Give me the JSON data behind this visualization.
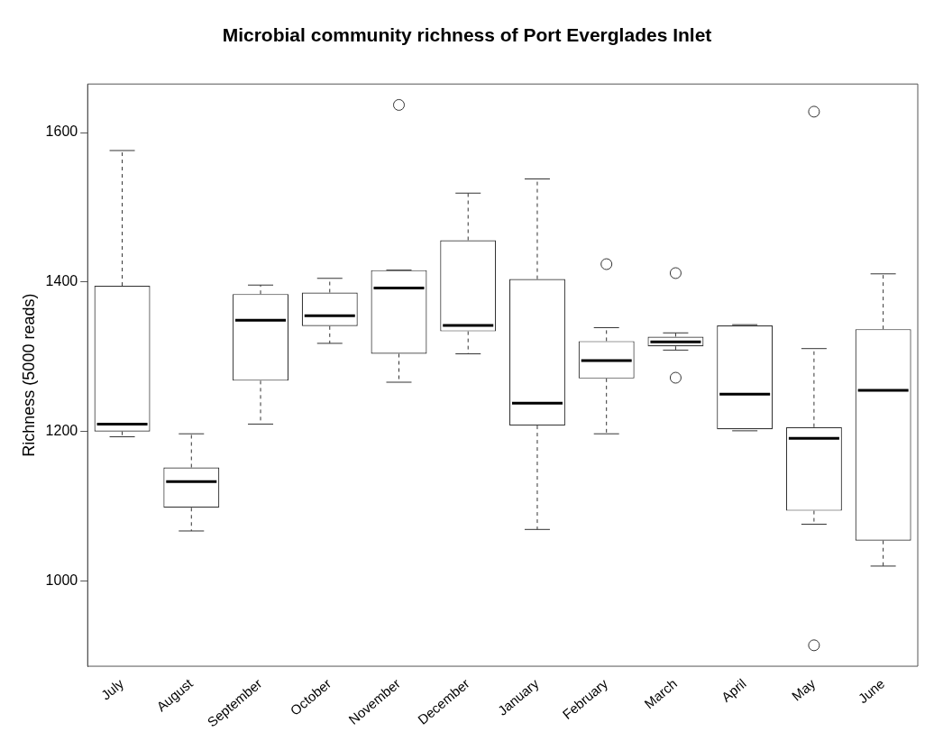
{
  "chart_data": {
    "type": "box",
    "title": "Microbial community richness of Port Everglades Inlet",
    "ylabel": "Richness (5000 reads)",
    "categories": [
      "July",
      "August",
      "September",
      "October",
      "November",
      "December",
      "January",
      "February",
      "March",
      "April",
      "May",
      "June"
    ],
    "boxes": [
      {
        "low": 1193,
        "q1": 1200,
        "median": 1210,
        "q3": 1395,
        "high": 1576
      },
      {
        "low": 1067,
        "q1": 1098,
        "median": 1133,
        "q3": 1152,
        "high": 1197
      },
      {
        "low": 1210,
        "q1": 1268,
        "median": 1349,
        "q3": 1384,
        "high": 1396
      },
      {
        "low": 1318,
        "q1": 1341,
        "median": 1355,
        "q3": 1386,
        "high": 1405
      },
      {
        "low": 1266,
        "q1": 1304,
        "median": 1392,
        "q3": 1416,
        "high": 1416,
        "outliers": [
          1637
        ]
      },
      {
        "low": 1304,
        "q1": 1334,
        "median": 1342,
        "q3": 1456,
        "high": 1519
      },
      {
        "low": 1069,
        "q1": 1208,
        "median": 1238,
        "q3": 1404,
        "high": 1538
      },
      {
        "low": 1197,
        "q1": 1271,
        "median": 1295,
        "q3": 1321,
        "high": 1339,
        "outliers": [
          1424
        ]
      },
      {
        "low": 1309,
        "q1": 1314,
        "median": 1320,
        "q3": 1327,
        "high": 1332,
        "outliers": [
          1412,
          1272
        ]
      },
      {
        "low": 1201,
        "q1": 1203,
        "median": 1250,
        "q3": 1342,
        "high": 1343
      },
      {
        "low": 1076,
        "q1": 1094,
        "median": 1191,
        "q3": 1206,
        "high": 1311,
        "outliers": [
          1628,
          914
        ]
      },
      {
        "low": 1020,
        "q1": 1054,
        "median": 1255,
        "q3": 1337,
        "high": 1411
      }
    ],
    "ylim": [
      886,
      1665
    ],
    "yticks": [
      1000,
      1200,
      1400,
      1600
    ],
    "grid": false
  }
}
